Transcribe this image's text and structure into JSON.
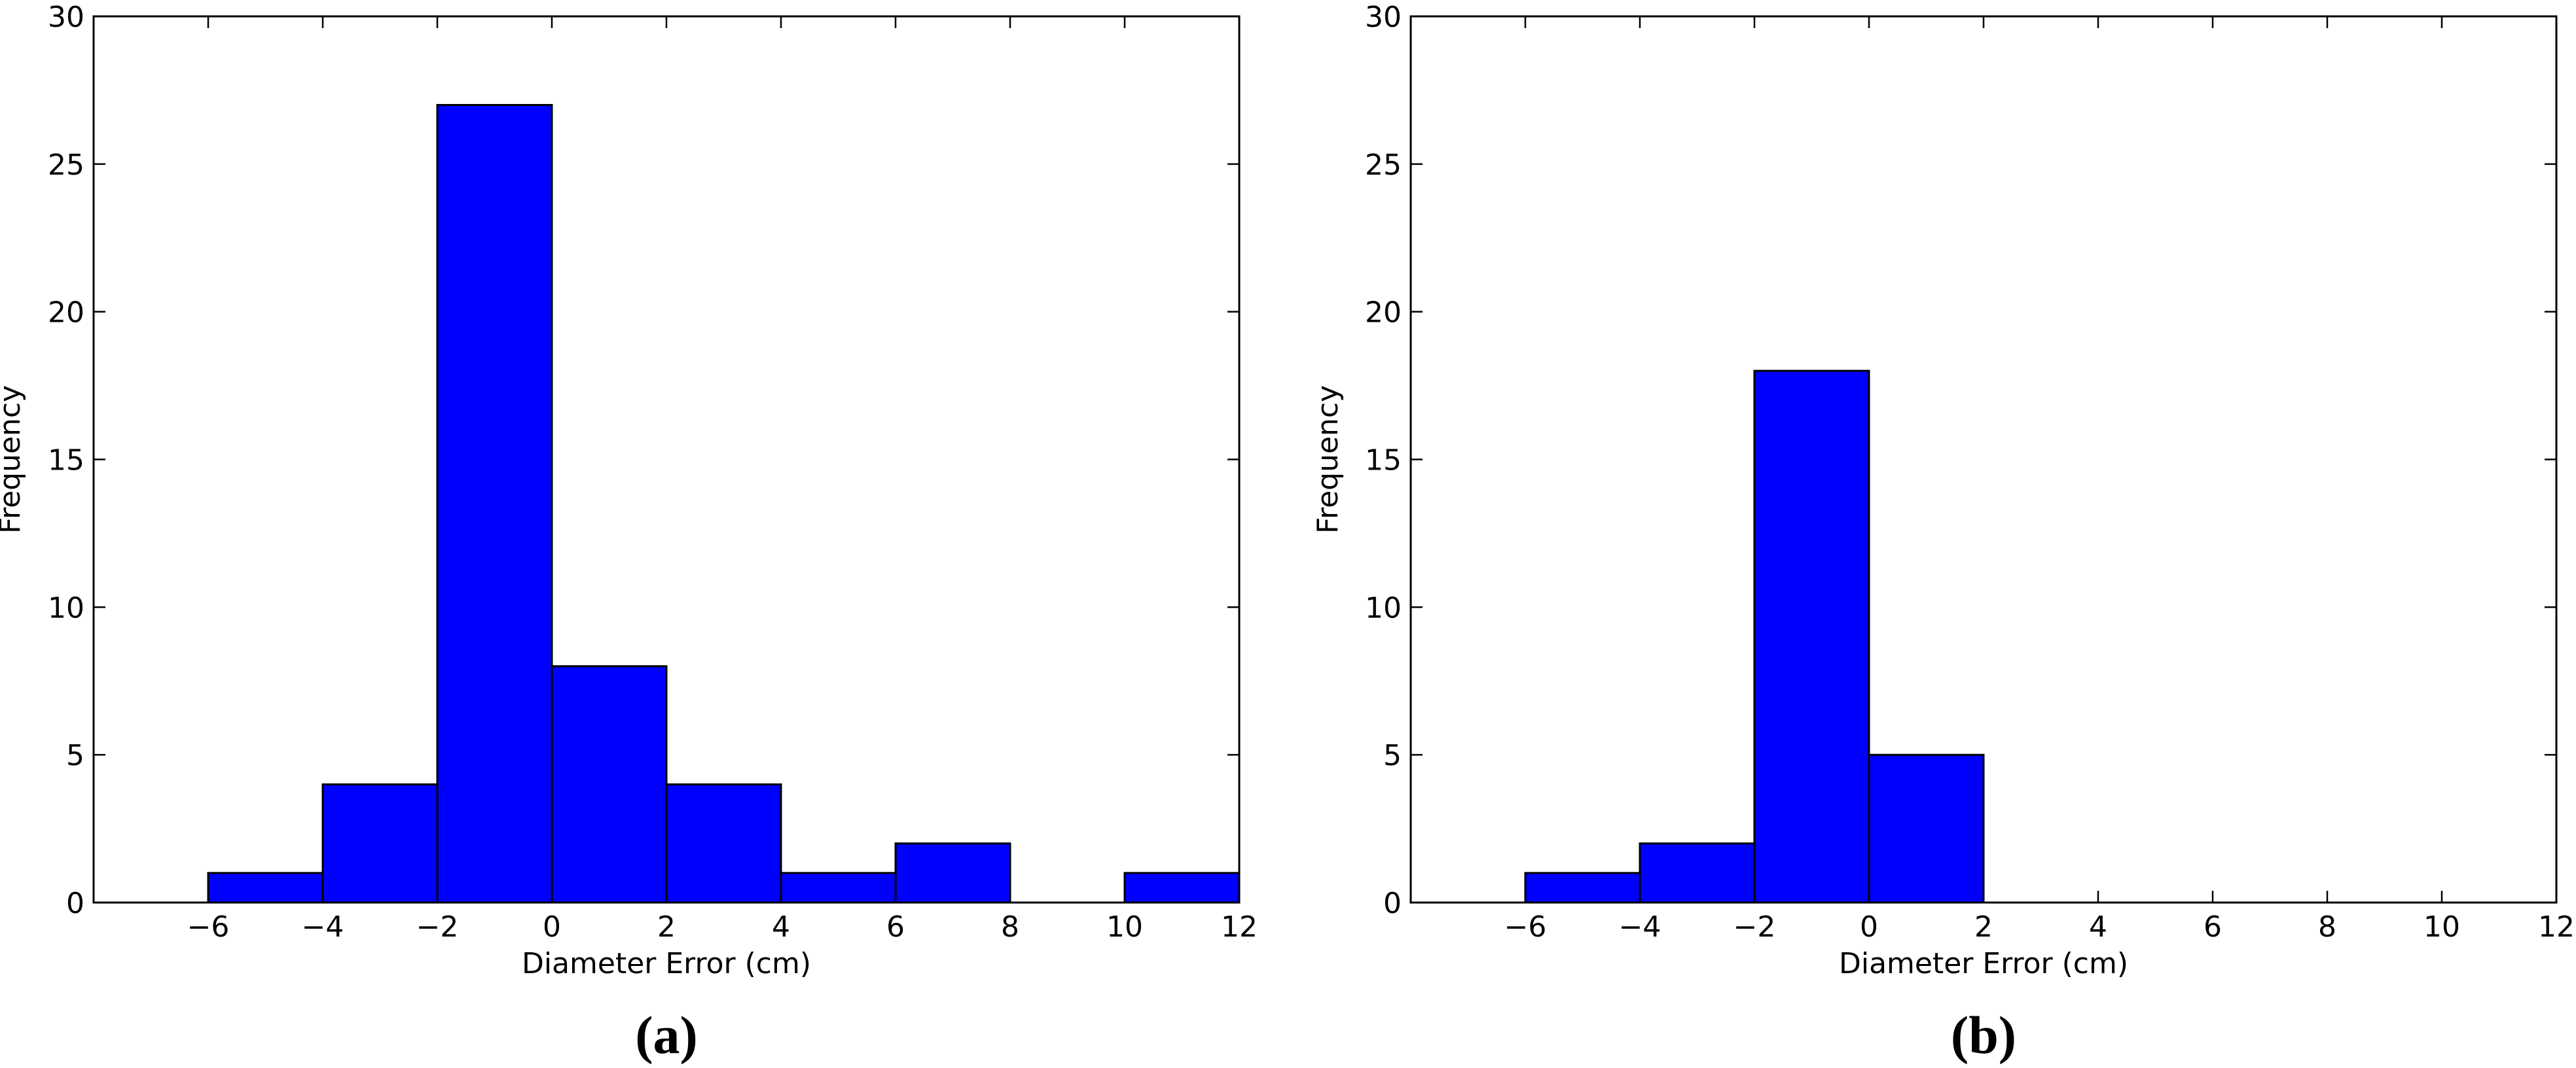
{
  "chart_data": [
    {
      "type": "bar",
      "histogram": true,
      "bin_edges": [
        -6,
        -4,
        -2,
        0,
        2,
        4,
        6,
        8,
        10,
        12
      ],
      "values": [
        1,
        4,
        27,
        8,
        4,
        1,
        2,
        0,
        1
      ],
      "xlabel": "Diameter Error (cm)",
      "ylabel": "Frequency",
      "xlim": [
        -8,
        12
      ],
      "ylim": [
        0,
        30
      ],
      "xticks": [
        -6,
        -4,
        -2,
        0,
        2,
        4,
        6,
        8,
        10,
        12
      ],
      "xtick_labels": [
        "−6",
        "−4",
        "−2",
        "0",
        "2",
        "4",
        "6",
        "8",
        "10",
        "12"
      ],
      "yticks": [
        0,
        5,
        10,
        15,
        20,
        25,
        30
      ],
      "ytick_labels": [
        "0",
        "5",
        "10",
        "15",
        "20",
        "25",
        "30"
      ],
      "bar_color": "#0000ff",
      "grid": false,
      "panel_label": "(a)"
    },
    {
      "type": "bar",
      "histogram": true,
      "bin_edges": [
        -6,
        -4,
        -2,
        0,
        2
      ],
      "values": [
        1,
        2,
        18,
        5
      ],
      "xlabel": "Diameter Error (cm)",
      "ylabel": "Frequency",
      "xlim": [
        -8,
        12
      ],
      "ylim": [
        0,
        30
      ],
      "xticks": [
        -6,
        -4,
        -2,
        0,
        2,
        4,
        6,
        8,
        10,
        12
      ],
      "xtick_labels": [
        "−6",
        "−4",
        "−2",
        "0",
        "2",
        "4",
        "6",
        "8",
        "10",
        "12"
      ],
      "yticks": [
        0,
        5,
        10,
        15,
        20,
        25,
        30
      ],
      "ytick_labels": [
        "0",
        "5",
        "10",
        "15",
        "20",
        "25",
        "30"
      ],
      "bar_color": "#0000ff",
      "grid": false,
      "panel_label": "(b)"
    }
  ]
}
